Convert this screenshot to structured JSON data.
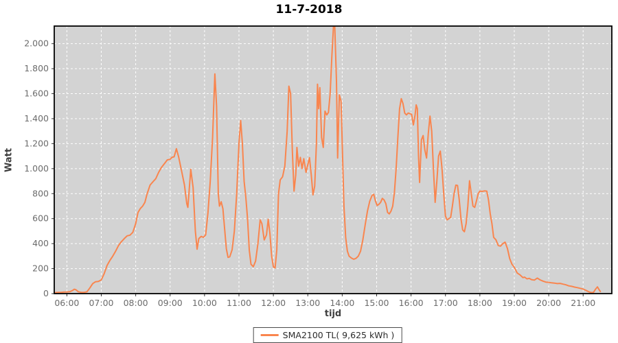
{
  "title": "11-7-2018",
  "axes": {
    "x_label": "tijd",
    "y_label": "Watt"
  },
  "legend": {
    "label": "SMA2100 TL( 9,625 kWh )",
    "swatch_color": "#f9854e"
  },
  "colors": {
    "plot_background": "#d3d3d3",
    "gridline": "#ffffff",
    "frame": "#000000",
    "tick_label": "#6b6b6b",
    "series_line": "#f9854e"
  },
  "chart_data": {
    "type": "line",
    "title": "11-7-2018",
    "xlabel": "tijd",
    "ylabel": "Watt",
    "grid": "white dashed on gray panel",
    "legend_position": "bottom-center",
    "x_ticks": [
      "06:00",
      "07:00",
      "08:00",
      "09:00",
      "10:00",
      "11:00",
      "12:00",
      "13:00",
      "14:00",
      "15:00",
      "16:00",
      "17:00",
      "18:00",
      "19:00",
      "20:00",
      "21:00"
    ],
    "y_ticks": [
      {
        "label": "0",
        "value": 0
      },
      {
        "label": "200",
        "value": 200
      },
      {
        "label": "400",
        "value": 400
      },
      {
        "label": "600",
        "value": 600
      },
      {
        "label": "800",
        "value": 800
      },
      {
        "label": "1.000",
        "value": 1000
      },
      {
        "label": "1.200",
        "value": 1200
      },
      {
        "label": "1.400",
        "value": 1400
      },
      {
        "label": "1.600",
        "value": 1600
      },
      {
        "label": "1.800",
        "value": 1800
      },
      {
        "label": "2.000",
        "value": 2000
      }
    ],
    "x_range_minutes": [
      338,
      1310
    ],
    "ylim": [
      0,
      2141
    ],
    "series": [
      {
        "name": "SMA2100 TL( 9,625 kWh )",
        "color": "#f9854e",
        "points": [
          [
            "05:40",
            8
          ],
          [
            "05:45",
            10
          ],
          [
            "05:50",
            10
          ],
          [
            "05:55",
            12
          ],
          [
            "06:00",
            13
          ],
          [
            "06:05",
            15
          ],
          [
            "06:10",
            25
          ],
          [
            "06:13",
            35
          ],
          [
            "06:16",
            30
          ],
          [
            "06:20",
            15
          ],
          [
            "06:25",
            10
          ],
          [
            "06:30",
            10
          ],
          [
            "06:35",
            14
          ],
          [
            "06:40",
            45
          ],
          [
            "06:45",
            80
          ],
          [
            "06:50",
            95
          ],
          [
            "06:55",
            97
          ],
          [
            "07:00",
            110
          ],
          [
            "07:05",
            160
          ],
          [
            "07:10",
            225
          ],
          [
            "07:15",
            265
          ],
          [
            "07:20",
            300
          ],
          [
            "07:25",
            340
          ],
          [
            "07:30",
            385
          ],
          [
            "07:35",
            415
          ],
          [
            "07:40",
            440
          ],
          [
            "07:45",
            462
          ],
          [
            "07:50",
            468
          ],
          [
            "07:55",
            490
          ],
          [
            "08:00",
            560
          ],
          [
            "08:04",
            650
          ],
          [
            "08:08",
            680
          ],
          [
            "08:12",
            700
          ],
          [
            "08:16",
            730
          ],
          [
            "08:20",
            800
          ],
          [
            "08:25",
            868
          ],
          [
            "08:30",
            895
          ],
          [
            "08:35",
            920
          ],
          [
            "08:40",
            970
          ],
          [
            "08:45",
            1010
          ],
          [
            "08:50",
            1040
          ],
          [
            "08:55",
            1070
          ],
          [
            "09:00",
            1075
          ],
          [
            "09:03",
            1090
          ],
          [
            "09:07",
            1095
          ],
          [
            "09:11",
            1160
          ],
          [
            "09:15",
            1090
          ],
          [
            "09:20",
            980
          ],
          [
            "09:25",
            870
          ],
          [
            "09:29",
            720
          ],
          [
            "09:31",
            690
          ],
          [
            "09:36",
            995
          ],
          [
            "09:40",
            850
          ],
          [
            "09:44",
            500
          ],
          [
            "09:47",
            355
          ],
          [
            "09:50",
            440
          ],
          [
            "09:54",
            458
          ],
          [
            "09:58",
            450
          ],
          [
            "10:02",
            470
          ],
          [
            "10:06",
            650
          ],
          [
            "10:10",
            900
          ],
          [
            "10:14",
            1250
          ],
          [
            "10:18",
            1758
          ],
          [
            "10:21",
            1500
          ],
          [
            "10:24",
            800
          ],
          [
            "10:26",
            700
          ],
          [
            "10:29",
            735
          ],
          [
            "10:32",
            680
          ],
          [
            "10:35",
            520
          ],
          [
            "10:38",
            360
          ],
          [
            "10:41",
            290
          ],
          [
            "10:44",
            295
          ],
          [
            "10:48",
            350
          ],
          [
            "10:52",
            500
          ],
          [
            "10:56",
            800
          ],
          [
            "11:00",
            1200
          ],
          [
            "11:03",
            1385
          ],
          [
            "11:06",
            1200
          ],
          [
            "11:09",
            900
          ],
          [
            "11:12",
            770
          ],
          [
            "11:15",
            600
          ],
          [
            "11:18",
            350
          ],
          [
            "11:21",
            235
          ],
          [
            "11:25",
            215
          ],
          [
            "11:29",
            260
          ],
          [
            "11:33",
            400
          ],
          [
            "11:37",
            590
          ],
          [
            "11:40",
            560
          ],
          [
            "11:44",
            430
          ],
          [
            "11:48",
            470
          ],
          [
            "11:51",
            595
          ],
          [
            "11:54",
            480
          ],
          [
            "11:57",
            300
          ],
          [
            "12:00",
            215
          ],
          [
            "12:03",
            205
          ],
          [
            "12:06",
            350
          ],
          [
            "12:09",
            800
          ],
          [
            "12:12",
            910
          ],
          [
            "12:16",
            935
          ],
          [
            "12:20",
            1020
          ],
          [
            "12:24",
            1300
          ],
          [
            "12:27",
            1660
          ],
          [
            "12:30",
            1600
          ],
          [
            "12:33",
            1150
          ],
          [
            "12:36",
            820
          ],
          [
            "12:39",
            950
          ],
          [
            "12:41",
            1170
          ],
          [
            "12:44",
            1020
          ],
          [
            "12:47",
            1090
          ],
          [
            "12:50",
            1000
          ],
          [
            "12:53",
            1080
          ],
          [
            "12:57",
            970
          ],
          [
            "13:00",
            1030
          ],
          [
            "13:03",
            1088
          ],
          [
            "13:06",
            950
          ],
          [
            "13:09",
            790
          ],
          [
            "13:12",
            860
          ],
          [
            "13:15",
            1200
          ],
          [
            "13:17",
            1676
          ],
          [
            "13:19",
            1480
          ],
          [
            "13:21",
            1648
          ],
          [
            "13:24",
            1250
          ],
          [
            "13:27",
            1170
          ],
          [
            "13:30",
            1460
          ],
          [
            "13:33",
            1430
          ],
          [
            "13:36",
            1450
          ],
          [
            "13:39",
            1600
          ],
          [
            "13:42",
            1900
          ],
          [
            "13:45",
            2155
          ],
          [
            "13:47",
            2140
          ],
          [
            "13:50",
            1700
          ],
          [
            "13:52",
            1085
          ],
          [
            "13:55",
            1590
          ],
          [
            "13:58",
            1540
          ],
          [
            "14:00",
            1200
          ],
          [
            "14:03",
            700
          ],
          [
            "14:06",
            450
          ],
          [
            "14:09",
            340
          ],
          [
            "14:12",
            300
          ],
          [
            "14:16",
            285
          ],
          [
            "14:20",
            275
          ],
          [
            "14:24",
            282
          ],
          [
            "14:28",
            300
          ],
          [
            "14:32",
            340
          ],
          [
            "14:36",
            430
          ],
          [
            "14:40",
            550
          ],
          [
            "14:44",
            660
          ],
          [
            "14:48",
            740
          ],
          [
            "14:52",
            785
          ],
          [
            "14:55",
            795
          ],
          [
            "14:58",
            740
          ],
          [
            "15:01",
            705
          ],
          [
            "15:04",
            715
          ],
          [
            "15:07",
            730
          ],
          [
            "15:10",
            762
          ],
          [
            "15:13",
            750
          ],
          [
            "15:16",
            720
          ],
          [
            "15:19",
            650
          ],
          [
            "15:22",
            638
          ],
          [
            "15:25",
            660
          ],
          [
            "15:28",
            700
          ],
          [
            "15:31",
            810
          ],
          [
            "15:34",
            1000
          ],
          [
            "15:37",
            1250
          ],
          [
            "15:40",
            1480
          ],
          [
            "15:43",
            1560
          ],
          [
            "15:46",
            1520
          ],
          [
            "15:49",
            1445
          ],
          [
            "15:52",
            1430
          ],
          [
            "15:55",
            1445
          ],
          [
            "15:58",
            1440
          ],
          [
            "16:01",
            1435
          ],
          [
            "16:04",
            1350
          ],
          [
            "16:07",
            1430
          ],
          [
            "16:09",
            1510
          ],
          [
            "16:11",
            1480
          ],
          [
            "16:13",
            1100
          ],
          [
            "16:15",
            890
          ],
          [
            "16:18",
            1230
          ],
          [
            "16:21",
            1265
          ],
          [
            "16:24",
            1150
          ],
          [
            "16:27",
            1085
          ],
          [
            "16:30",
            1280
          ],
          [
            "16:33",
            1420
          ],
          [
            "16:36",
            1300
          ],
          [
            "16:39",
            1000
          ],
          [
            "16:42",
            730
          ],
          [
            "16:45",
            900
          ],
          [
            "16:48",
            1100
          ],
          [
            "16:51",
            1140
          ],
          [
            "16:54",
            1000
          ],
          [
            "16:57",
            800
          ],
          [
            "17:00",
            620
          ],
          [
            "17:03",
            590
          ],
          [
            "17:06",
            600
          ],
          [
            "17:09",
            610
          ],
          [
            "17:12",
            700
          ],
          [
            "17:15",
            800
          ],
          [
            "17:18",
            868
          ],
          [
            "17:21",
            865
          ],
          [
            "17:24",
            750
          ],
          [
            "17:27",
            600
          ],
          [
            "17:30",
            510
          ],
          [
            "17:33",
            495
          ],
          [
            "17:36",
            560
          ],
          [
            "17:39",
            700
          ],
          [
            "17:42",
            903
          ],
          [
            "17:45",
            800
          ],
          [
            "17:48",
            700
          ],
          [
            "17:51",
            690
          ],
          [
            "17:54",
            740
          ],
          [
            "17:57",
            800
          ],
          [
            "18:00",
            820
          ],
          [
            "18:04",
            818
          ],
          [
            "18:08",
            822
          ],
          [
            "18:12",
            820
          ],
          [
            "18:15",
            750
          ],
          [
            "18:18",
            640
          ],
          [
            "18:21",
            560
          ],
          [
            "18:24",
            450
          ],
          [
            "18:28",
            430
          ],
          [
            "18:32",
            385
          ],
          [
            "18:36",
            380
          ],
          [
            "18:40",
            400
          ],
          [
            "18:44",
            412
          ],
          [
            "18:48",
            360
          ],
          [
            "18:52",
            280
          ],
          [
            "18:56",
            235
          ],
          [
            "19:00",
            210
          ],
          [
            "19:05",
            165
          ],
          [
            "19:10",
            150
          ],
          [
            "19:15",
            128
          ],
          [
            "19:18",
            132
          ],
          [
            "19:22",
            118
          ],
          [
            "19:26",
            122
          ],
          [
            "19:30",
            112
          ],
          [
            "19:35",
            108
          ],
          [
            "19:40",
            124
          ],
          [
            "19:45",
            110
          ],
          [
            "19:50",
            100
          ],
          [
            "19:55",
            92
          ],
          [
            "20:00",
            90
          ],
          [
            "20:05",
            86
          ],
          [
            "20:10",
            84
          ],
          [
            "20:15",
            80
          ],
          [
            "20:20",
            82
          ],
          [
            "20:25",
            76
          ],
          [
            "20:30",
            70
          ],
          [
            "20:35",
            62
          ],
          [
            "20:40",
            58
          ],
          [
            "20:45",
            52
          ],
          [
            "20:50",
            48
          ],
          [
            "20:55",
            42
          ],
          [
            "21:00",
            36
          ],
          [
            "21:05",
            26
          ],
          [
            "21:10",
            14
          ],
          [
            "21:14",
            8
          ],
          [
            "21:18",
            10
          ],
          [
            "21:22",
            38
          ],
          [
            "21:25",
            54
          ],
          [
            "21:28",
            30
          ],
          [
            "21:30",
            17
          ]
        ]
      }
    ]
  }
}
